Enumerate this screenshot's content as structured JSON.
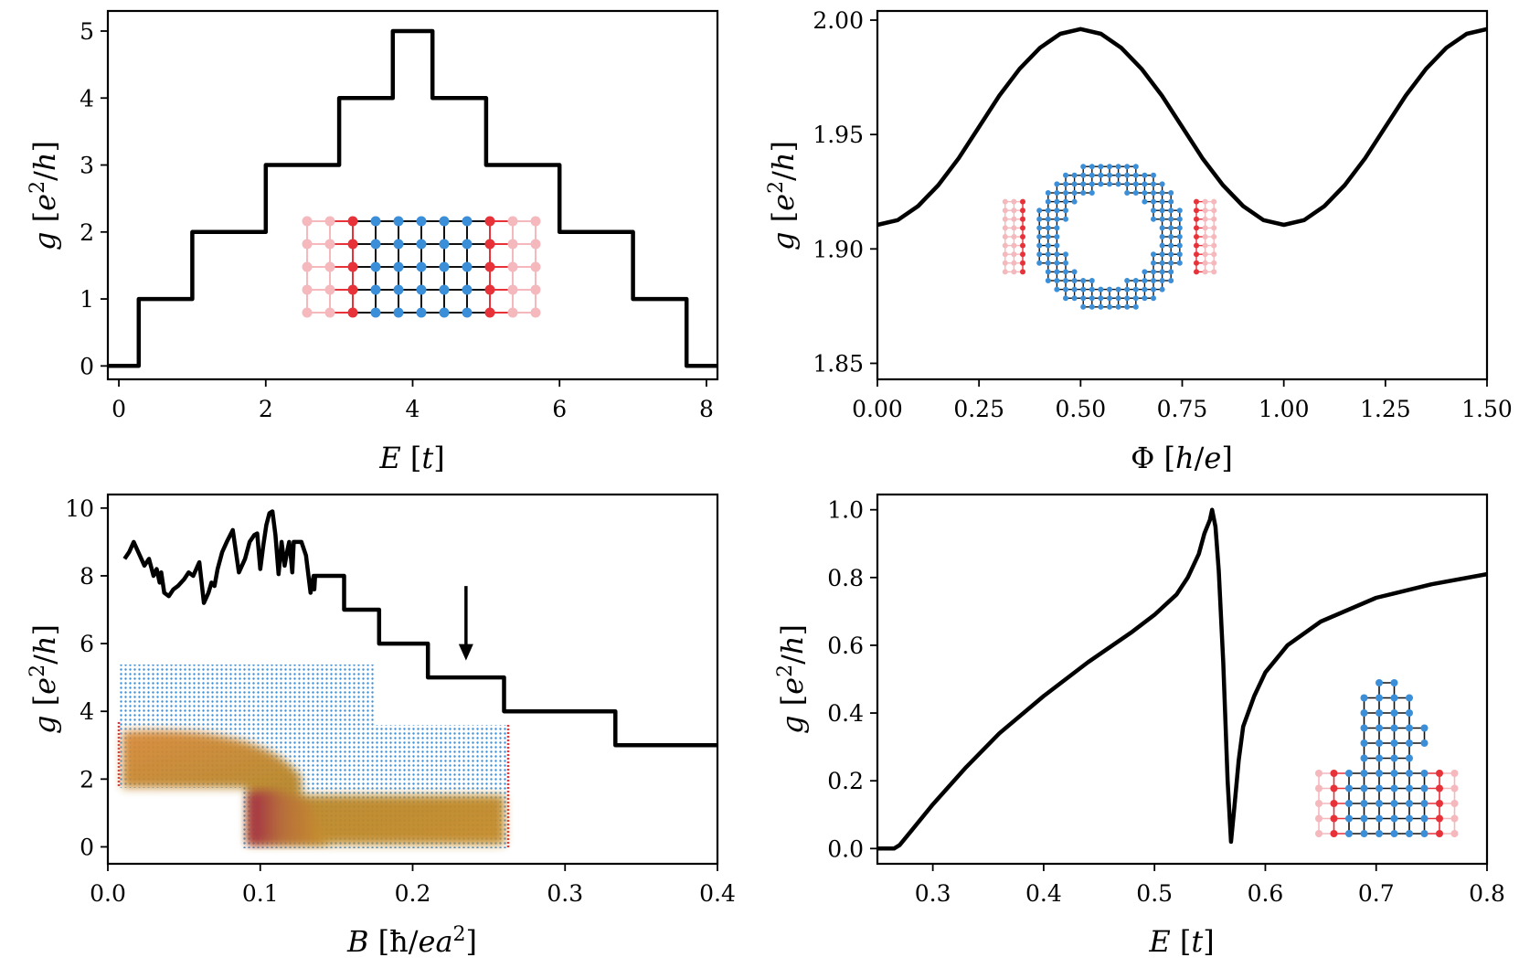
{
  "chart_data": [
    {
      "type": "line",
      "panel": "top-left",
      "xlabel": "E [t]",
      "ylabel": "g [e²/h]",
      "xlim": [
        -0.15,
        8.15
      ],
      "ylim": [
        -0.2,
        5.3
      ],
      "xticks": [
        0,
        2,
        4,
        6,
        8
      ],
      "yticks": [
        0,
        1,
        2,
        3,
        4,
        5
      ],
      "xtick_labels": [
        "0",
        "2",
        "4",
        "6",
        "8"
      ],
      "ytick_labels": [
        "0",
        "1",
        "2",
        "3",
        "4",
        "5"
      ],
      "step": true,
      "x": [
        -0.15,
        0.27,
        0.27,
        1.0,
        1.0,
        2.0,
        2.0,
        3.0,
        3.0,
        3.73,
        3.73,
        4.27,
        4.27,
        5.0,
        5.0,
        6.0,
        6.0,
        7.0,
        7.0,
        7.73,
        7.73,
        8.15
      ],
      "y": [
        0,
        0,
        1,
        1,
        2,
        2,
        3,
        3,
        4,
        4,
        5,
        5,
        4,
        4,
        3,
        3,
        2,
        2,
        1,
        1,
        0,
        0
      ],
      "inset": "rectangular-lattice"
    },
    {
      "type": "line",
      "panel": "top-right",
      "xlabel": "Φ [h/e]",
      "ylabel": "g [e²/h]",
      "xlim": [
        0.0,
        1.5
      ],
      "ylim": [
        1.843,
        2.004
      ],
      "xticks": [
        0.0,
        0.25,
        0.5,
        0.75,
        1.0,
        1.25,
        1.5
      ],
      "yticks": [
        1.85,
        1.9,
        1.95,
        2.0
      ],
      "xtick_labels": [
        "0.00",
        "0.25",
        "0.50",
        "0.75",
        "1.00",
        "1.25",
        "1.50"
      ],
      "ytick_labels": [
        "1.85",
        "1.90",
        "1.95",
        "2.00"
      ],
      "x": [
        0.0,
        0.05,
        0.1,
        0.15,
        0.2,
        0.25,
        0.3,
        0.35,
        0.4,
        0.45,
        0.5,
        0.55,
        0.6,
        0.65,
        0.7,
        0.75,
        0.8,
        0.85,
        0.9,
        0.95,
        1.0,
        1.05,
        1.1,
        1.15,
        1.2,
        1.25,
        1.3,
        1.35,
        1.4,
        1.45,
        1.5
      ],
      "y": [
        1.9105,
        1.9126,
        1.9187,
        1.9279,
        1.9396,
        1.9533,
        1.967,
        1.9787,
        1.9879,
        1.994,
        1.9961,
        1.994,
        1.9879,
        1.9787,
        1.967,
        1.9533,
        1.9396,
        1.9279,
        1.9187,
        1.9126,
        1.9105,
        1.9126,
        1.9187,
        1.9279,
        1.9396,
        1.9533,
        1.967,
        1.9787,
        1.9879,
        1.994,
        1.9961
      ],
      "inset": "ring-lattice"
    },
    {
      "type": "line",
      "panel": "bottom-left",
      "xlabel": "B [ħ/ea²]",
      "ylabel": "g [e²/h]",
      "xlim": [
        0.0,
        0.4
      ],
      "ylim": [
        -0.5,
        10.4
      ],
      "xticks": [
        0.0,
        0.1,
        0.2,
        0.3,
        0.4
      ],
      "yticks": [
        0,
        2,
        4,
        6,
        8,
        10
      ],
      "xtick_labels": [
        "0.0",
        "0.1",
        "0.2",
        "0.3",
        "0.4"
      ],
      "ytick_labels": [
        "0",
        "2",
        "4",
        "6",
        "8",
        "10"
      ],
      "x": [
        0.011,
        0.014,
        0.017,
        0.02,
        0.024,
        0.027,
        0.03,
        0.032,
        0.034,
        0.035,
        0.037,
        0.04,
        0.043,
        0.046,
        0.05,
        0.053,
        0.056,
        0.06,
        0.063,
        0.066,
        0.068,
        0.07,
        0.072,
        0.075,
        0.078,
        0.082,
        0.086,
        0.09,
        0.093,
        0.096,
        0.098,
        0.1,
        0.102,
        0.104,
        0.106,
        0.108,
        0.11,
        0.112,
        0.114,
        0.116,
        0.118,
        0.119,
        0.12,
        0.121,
        0.122,
        0.123,
        0.125,
        0.127,
        0.13,
        0.133,
        0.135,
        0.1355,
        0.136,
        0.137,
        0.138,
        0.14,
        0.155,
        0.155,
        0.178,
        0.178,
        0.21,
        0.21,
        0.26,
        0.26,
        0.333,
        0.333,
        0.4
      ],
      "y": [
        8.5,
        8.7,
        9.0,
        8.7,
        8.3,
        8.5,
        8.0,
        8.2,
        7.8,
        8.1,
        7.5,
        7.4,
        7.6,
        7.7,
        7.9,
        8.1,
        8.0,
        8.4,
        7.2,
        7.5,
        7.8,
        7.7,
        8.2,
        8.7,
        9.0,
        9.35,
        8.1,
        8.5,
        9.0,
        9.2,
        9.25,
        8.2,
        8.9,
        9.5,
        9.85,
        9.9,
        9.2,
        8.05,
        9.0,
        8.3,
        8.8,
        9.0,
        8.6,
        8.1,
        9.0,
        9.0,
        9.0,
        9.0,
        8.6,
        7.5,
        8.0,
        7.6,
        8.0,
        8.0,
        8.0,
        8.0,
        8.0,
        7.0,
        7.0,
        6.0,
        6.0,
        5.0,
        5.0,
        4.0,
        4.0,
        3.0,
        3.0
      ],
      "annotation": "down-arrow at B≈0.235 pointing to g≈5.4",
      "inset": "hall-bar-density-map"
    },
    {
      "type": "line",
      "panel": "bottom-right",
      "xlabel": "E [t]",
      "ylabel": "g [e²/h]",
      "xlim": [
        0.25,
        0.8
      ],
      "ylim": [
        -0.045,
        1.045
      ],
      "xticks": [
        0.3,
        0.4,
        0.5,
        0.6,
        0.7,
        0.8
      ],
      "yticks": [
        0.0,
        0.2,
        0.4,
        0.6,
        0.8,
        1.0
      ],
      "xtick_labels": [
        "0.3",
        "0.4",
        "0.5",
        "0.6",
        "0.7",
        "0.8"
      ],
      "ytick_labels": [
        "0.0",
        "0.2",
        "0.4",
        "0.6",
        "0.8",
        "1.0"
      ],
      "x": [
        0.25,
        0.265,
        0.27,
        0.28,
        0.3,
        0.33,
        0.36,
        0.4,
        0.44,
        0.48,
        0.5,
        0.52,
        0.53,
        0.54,
        0.545,
        0.55,
        0.552,
        0.555,
        0.558,
        0.562,
        0.566,
        0.569,
        0.572,
        0.576,
        0.58,
        0.59,
        0.6,
        0.62,
        0.65,
        0.7,
        0.75,
        0.8
      ],
      "y": [
        0.0,
        0.0,
        0.01,
        0.05,
        0.13,
        0.24,
        0.34,
        0.45,
        0.55,
        0.64,
        0.69,
        0.75,
        0.8,
        0.87,
        0.93,
        0.97,
        1.0,
        0.95,
        0.82,
        0.55,
        0.2,
        0.02,
        0.12,
        0.26,
        0.36,
        0.45,
        0.52,
        0.6,
        0.67,
        0.74,
        0.78,
        0.81
      ],
      "inset": "t-junction-lattice"
    }
  ]
}
